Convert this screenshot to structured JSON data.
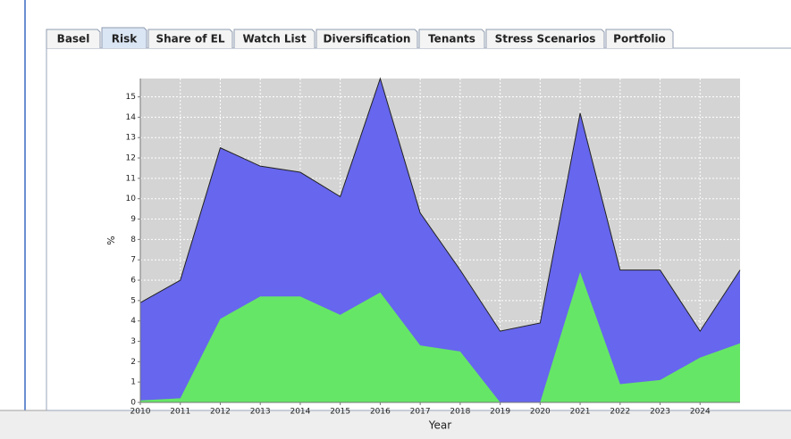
{
  "tabs": [
    "Basel",
    "Risk",
    "Share of EL",
    "Watch List",
    "Diversification",
    "Tenants",
    "Stress Scenarios",
    "Portfolio"
  ],
  "selected_tab": 1,
  "chart_data": {
    "type": "area",
    "xlabel": "Year",
    "ylabel": "%",
    "x": [
      2010,
      2011,
      2012,
      2013,
      2014,
      2015,
      2016,
      2017,
      2018,
      2019,
      2020,
      2021,
      2022,
      2023,
      2024,
      2025
    ],
    "xlim": [
      2010,
      2025
    ],
    "xticks": [
      2010,
      2011,
      2012,
      2013,
      2014,
      2015,
      2016,
      2017,
      2018,
      2019,
      2020,
      2021,
      2022,
      2023,
      2024
    ],
    "ylim": [
      0,
      15.9
    ],
    "yticks": [
      0,
      1,
      2,
      3,
      4,
      5,
      6,
      7,
      8,
      9,
      10,
      11,
      12,
      13,
      14,
      15
    ],
    "grid": true,
    "series": [
      {
        "color": "#6666ee",
        "outline": "#222222",
        "values": [
          4.9,
          6.0,
          12.5,
          11.6,
          11.3,
          10.1,
          15.9,
          9.3,
          6.5,
          3.5,
          3.9,
          14.2,
          6.5,
          6.5,
          3.5,
          6.5
        ]
      },
      {
        "color": "#66e666",
        "values": [
          0.1,
          0.2,
          4.1,
          5.2,
          5.2,
          4.3,
          5.4,
          2.8,
          2.5,
          0,
          0,
          6.4,
          0.9,
          1.1,
          2.2,
          2.9
        ]
      }
    ]
  }
}
